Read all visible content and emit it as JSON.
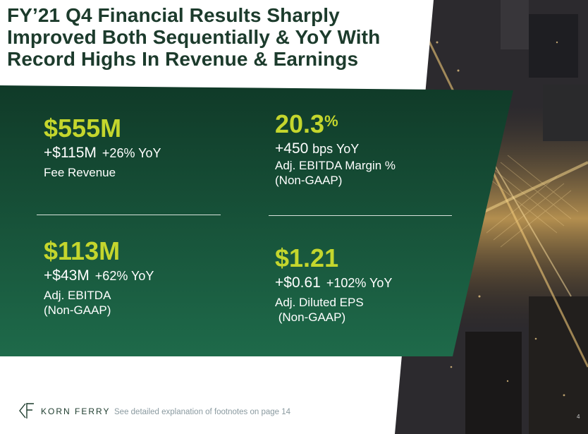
{
  "title_lines": [
    "FY’21 Q4 Financial Results Sharply",
    "Improved Both Sequentially & YoY With",
    "Record Highs In Revenue & Earnings"
  ],
  "metrics": {
    "fee_revenue": {
      "value": "$555M",
      "change": "+$115M",
      "yoy": "+26% YoY",
      "label": "Fee Revenue"
    },
    "ebitda_margin": {
      "value": "20.3",
      "unit": "%",
      "change": "+450",
      "yoy": "bps YoY",
      "label1": "Adj. EBITDA Margin %",
      "label2": "(Non-GAAP)"
    },
    "adj_ebitda": {
      "value": "$113M",
      "change": "+$43M",
      "yoy": "+62% YoY",
      "label1": "Adj. EBITDA",
      "label2": "(Non-GAAP)"
    },
    "diluted_eps": {
      "value": "$1.21",
      "change": "+$0.61",
      "yoy": "+102% YoY",
      "label1": "Adj. Diluted EPS",
      "label2": " (Non-GAAP)"
    }
  },
  "footer": {
    "brand": "KORN FERRY",
    "note": "See detailed explanation of footnotes on page 14",
    "page": "4"
  },
  "colors": {
    "dark_green": "#1c3b2c",
    "panel_green": "#1a5a40",
    "accent": "#c4d62d"
  }
}
